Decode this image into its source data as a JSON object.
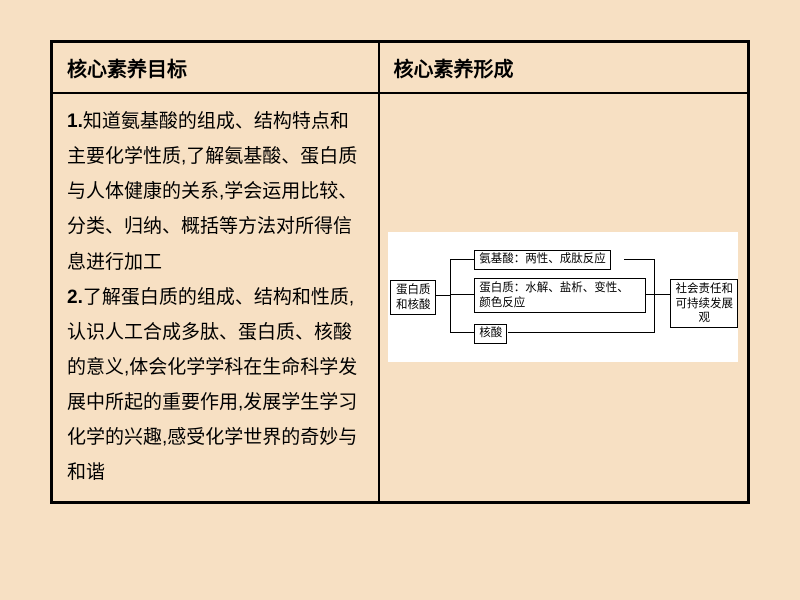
{
  "table": {
    "headers": {
      "left": "核心素养目标",
      "right": "核心素养形成"
    },
    "body_left": {
      "item1_num": "1.",
      "item1_text": "知道氨基酸的组成、结构特点和主要化学性质,了解氨基酸、蛋白质与人体健康的关系,学会运用比较、分类、归纳、概括等方法对所得信息进行加工",
      "item2_num": "2.",
      "item2_text": "了解蛋白质的组成、结构和性质,认识人工合成多肽、蛋白质、核酸的意义,体会化学学科在生命科学发展中所起的重要作用,发展学生学习化学的兴趣,感受化学世界的奇妙与和谐"
    }
  },
  "diagram": {
    "root": "蛋白质\n和核酸",
    "mid1": "氨基酸：两性、成肽反应",
    "mid2": "蛋白质：水解、盐析、变性、\n颜色反应",
    "mid3": "核酸",
    "right": "社会责任和\n可持续发展观",
    "box_border_color": "#000000",
    "bg_color": "#ffffff",
    "text_color": "#000000",
    "font_size_pt": 9
  },
  "colors": {
    "page_bg": "#f7e0c3",
    "border": "#000000",
    "text": "#000000"
  }
}
